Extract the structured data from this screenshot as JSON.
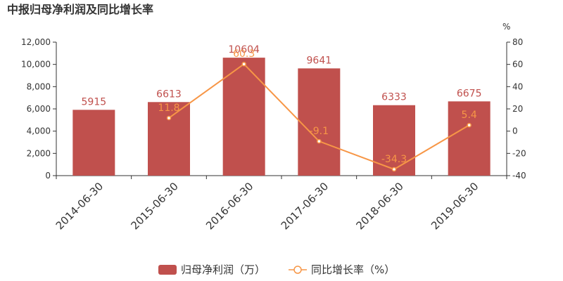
{
  "chart_data": {
    "type": "bar",
    "title": "中报归母净利润及同比增长率",
    "categories": [
      "2014-06-30",
      "2015-06-30",
      "2016-06-30",
      "2017-06-30",
      "2018-06-30",
      "2019-06-30"
    ],
    "series": [
      {
        "name": "归母净利润（万）",
        "type": "bar",
        "axis": "left",
        "color": "#c0504d",
        "values": [
          5915,
          6613,
          10604,
          9641,
          6333,
          6675
        ],
        "labels": [
          "5915",
          "6613",
          "10604",
          "9641",
          "6333",
          "6675"
        ]
      },
      {
        "name": "同比增长率（%）",
        "type": "line",
        "axis": "right",
        "color": "#f79646",
        "values": [
          null,
          11.8,
          60.3,
          -9.1,
          -34.3,
          5.4
        ],
        "labels": [
          "",
          "11.8",
          "60.3",
          "-9.1",
          "-34.3",
          "5.4"
        ]
      }
    ],
    "y_left": {
      "min": 0,
      "max": 12000,
      "ticks": [
        0,
        2000,
        4000,
        6000,
        8000,
        10000,
        12000
      ],
      "tick_labels": [
        "0",
        "2,000",
        "4,000",
        "6,000",
        "8,000",
        "10,000",
        "12,000"
      ]
    },
    "y_right": {
      "min": -40,
      "max": 80,
      "ticks": [
        -40,
        -20,
        0,
        20,
        40,
        60,
        80
      ],
      "tick_labels": [
        "-40",
        "-20",
        "0",
        "20",
        "40",
        "60",
        "80"
      ],
      "unit": "%"
    },
    "grid": false,
    "legend_position": "bottom"
  }
}
